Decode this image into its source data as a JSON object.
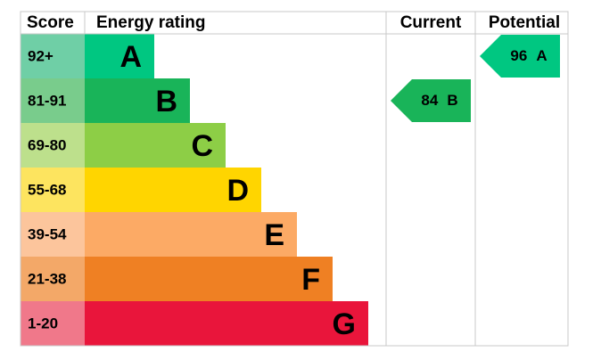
{
  "header": {
    "score": "Score",
    "rating": "Energy rating",
    "current": "Current",
    "potential": "Potential"
  },
  "bands": [
    {
      "score": "92+",
      "letter": "A",
      "color": "#00c781",
      "score_color": "#6fcfa6"
    },
    {
      "score": "81-91",
      "letter": "B",
      "color": "#19b459",
      "score_color": "#79cc8c"
    },
    {
      "score": "69-80",
      "letter": "C",
      "color": "#8dce46",
      "score_color": "#bde08c"
    },
    {
      "score": "55-68",
      "letter": "D",
      "color": "#ffd500",
      "score_color": "#fde45f"
    },
    {
      "score": "39-54",
      "letter": "E",
      "color": "#fcaa65",
      "score_color": "#fcc59c"
    },
    {
      "score": "21-38",
      "letter": "F",
      "color": "#ef8023",
      "score_color": "#f3a868"
    },
    {
      "score": "1-20",
      "letter": "G",
      "color": "#e9153b",
      "score_color": "#f0788a"
    }
  ],
  "current": {
    "value": 84,
    "letter": "B",
    "color": "#19b459"
  },
  "potential": {
    "value": 96,
    "letter": "A",
    "color": "#00c781"
  }
}
